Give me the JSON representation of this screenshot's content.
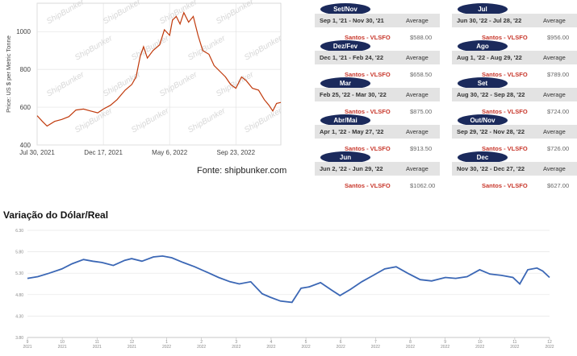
{
  "bunker_chart": {
    "y_axis_label": "Price: US $ per Metric Tonne",
    "watermark": "ShipBunker",
    "source": "Fonte: shipbunker.com"
  },
  "price_cards": [
    {
      "label": "Set/Nov",
      "period": "Sep 1, '21 - Nov 30, '21",
      "avg_label": "Average",
      "port": "Santos - VLSFO",
      "price": "$588.00"
    },
    {
      "label": "Dez/Fev",
      "period": "Dec 1, '21 - Feb 24, '22",
      "avg_label": "Average",
      "port": "Santos - VLSFO",
      "price": "$658.50"
    },
    {
      "label": "Mar",
      "period": "Feb 25, '22 - Mar 30, '22",
      "avg_label": "Average",
      "port": "Santos - VLSFO",
      "price": "$875.00"
    },
    {
      "label": "Abr/Mai",
      "period": "Apr 1, '22 - May 27, '22",
      "avg_label": "Average",
      "port": "Santos - VLSFO",
      "price": "$913.50"
    },
    {
      "label": "Jun",
      "period": "Jun 2, '22 - Jun 29, '22",
      "avg_label": "Average",
      "port": "Santos - VLSFO",
      "price": "$1062.00"
    },
    {
      "label": "Jul",
      "period": "Jun 30, '22 - Jul 28, '22",
      "avg_label": "Average",
      "port": "Santos - VLSFO",
      "price": "$956.00"
    },
    {
      "label": "Ago",
      "period": "Aug 1, '22 - Aug 29, '22",
      "avg_label": "Average",
      "port": "Santos - VLSFO",
      "price": "$789.00"
    },
    {
      "label": "Set",
      "period": "Aug 30, '22 - Sep 28, '22",
      "avg_label": "Average",
      "port": "Santos - VLSFO",
      "price": "$724.00"
    },
    {
      "label": "Out/Nov",
      "period": "Sep 29, '22 - Nov 28, '22",
      "avg_label": "Average",
      "port": "Santos - VLSFO",
      "price": "$726.00"
    },
    {
      "label": "Dec",
      "period": "Nov 30, '22 - Dec 27, '22",
      "avg_label": "Average",
      "port": "Santos - VLSFO",
      "price": "$627.00"
    }
  ],
  "fx_title": "Variação do Dólar/Real",
  "colors": {
    "bunker_line": "#c0390b",
    "fx_line": "#3b67b5",
    "pill": "#1b2a5c",
    "port_text": "#c8372b"
  },
  "chart_data": [
    {
      "type": "line",
      "title": "",
      "ylabel": "Price: US $ per Metric Tonne",
      "xlabel": "",
      "ylim": [
        400,
        1150
      ],
      "y_ticks": [
        400,
        600,
        800,
        1000
      ],
      "x_ticks": [
        "Jul 30, 2021",
        "Dec 17, 2021",
        "May 6, 2022",
        "Sep 23, 2022"
      ],
      "x_range": [
        "2021-07-30",
        "2022-12-27"
      ],
      "grid": true,
      "series": [
        {
          "points": [
            [
              "2021-07-30",
              555
            ],
            [
              "2021-08-10",
              525
            ],
            [
              "2021-08-20",
              500
            ],
            [
              "2021-09-05",
              525
            ],
            [
              "2021-09-20",
              535
            ],
            [
              "2021-10-05",
              550
            ],
            [
              "2021-10-20",
              585
            ],
            [
              "2021-11-05",
              590
            ],
            [
              "2021-11-20",
              580
            ],
            [
              "2021-12-05",
              570
            ],
            [
              "2021-12-17",
              590
            ],
            [
              "2022-01-01",
              610
            ],
            [
              "2022-01-15",
              640
            ],
            [
              "2022-02-01",
              690
            ],
            [
              "2022-02-15",
              720
            ],
            [
              "2022-02-24",
              760
            ],
            [
              "2022-03-05",
              870
            ],
            [
              "2022-03-12",
              920
            ],
            [
              "2022-03-20",
              860
            ],
            [
              "2022-04-01",
              900
            ],
            [
              "2022-04-15",
              930
            ],
            [
              "2022-04-25",
              1010
            ],
            [
              "2022-05-06",
              980
            ],
            [
              "2022-05-12",
              1060
            ],
            [
              "2022-05-20",
              1080
            ],
            [
              "2022-05-28",
              1040
            ],
            [
              "2022-06-05",
              1100
            ],
            [
              "2022-06-15",
              1050
            ],
            [
              "2022-06-25",
              1080
            ],
            [
              "2022-07-05",
              980
            ],
            [
              "2022-07-15",
              900
            ],
            [
              "2022-07-28",
              880
            ],
            [
              "2022-08-08",
              820
            ],
            [
              "2022-08-20",
              790
            ],
            [
              "2022-09-01",
              760
            ],
            [
              "2022-09-12",
              720
            ],
            [
              "2022-09-23",
              700
            ],
            [
              "2022-10-05",
              760
            ],
            [
              "2022-10-15",
              740
            ],
            [
              "2022-10-28",
              700
            ],
            [
              "2022-11-10",
              690
            ],
            [
              "2022-11-22",
              640
            ],
            [
              "2022-12-02",
              610
            ],
            [
              "2022-12-10",
              580
            ],
            [
              "2022-12-18",
              620
            ],
            [
              "2022-12-27",
              625
            ]
          ]
        }
      ]
    },
    {
      "type": "line",
      "title": "Variação do Dólar/Real",
      "xlabel": "",
      "ylabel": "",
      "ylim": [
        3.8,
        6.3
      ],
      "y_ticks": [
        "3.80",
        "4.30",
        "4.80",
        "5.30",
        "5.80",
        "6.30"
      ],
      "x_ticks": [
        [
          "9",
          "2021"
        ],
        [
          "10",
          "2021"
        ],
        [
          "11",
          "2021"
        ],
        [
          "12",
          "2021"
        ],
        [
          "1",
          "2022"
        ],
        [
          "2",
          "2022"
        ],
        [
          "3",
          "2022"
        ],
        [
          "4",
          "2022"
        ],
        [
          "5",
          "2022"
        ],
        [
          "6",
          "2022"
        ],
        [
          "7",
          "2022"
        ],
        [
          "8",
          "2022"
        ],
        [
          "9",
          "2022"
        ],
        [
          "10",
          "2022"
        ],
        [
          "11",
          "2022"
        ],
        [
          "12",
          "2022"
        ]
      ],
      "x_range": [
        "2021-09-01",
        "2022-12-01"
      ],
      "grid": true,
      "series": [
        {
          "points": [
            [
              "2021-09-01",
              5.18
            ],
            [
              "2021-09-10",
              5.22
            ],
            [
              "2021-09-20",
              5.3
            ],
            [
              "2021-10-01",
              5.4
            ],
            [
              "2021-10-10",
              5.52
            ],
            [
              "2021-10-20",
              5.62
            ],
            [
              "2021-10-28",
              5.58
            ],
            [
              "2021-11-05",
              5.55
            ],
            [
              "2021-11-15",
              5.48
            ],
            [
              "2021-11-25",
              5.6
            ],
            [
              "2021-12-01",
              5.64
            ],
            [
              "2021-12-10",
              5.58
            ],
            [
              "2021-12-20",
              5.68
            ],
            [
              "2021-12-28",
              5.7
            ],
            [
              "2022-01-05",
              5.66
            ],
            [
              "2022-01-15",
              5.55
            ],
            [
              "2022-01-25",
              5.45
            ],
            [
              "2022-02-05",
              5.32
            ],
            [
              "2022-02-15",
              5.2
            ],
            [
              "2022-02-25",
              5.1
            ],
            [
              "2022-03-05",
              5.05
            ],
            [
              "2022-03-15",
              5.1
            ],
            [
              "2022-03-25",
              4.82
            ],
            [
              "2022-04-01",
              4.74
            ],
            [
              "2022-04-10",
              4.65
            ],
            [
              "2022-04-20",
              4.62
            ],
            [
              "2022-04-28",
              4.95
            ],
            [
              "2022-05-05",
              4.98
            ],
            [
              "2022-05-15",
              5.08
            ],
            [
              "2022-05-25",
              4.9
            ],
            [
              "2022-06-01",
              4.78
            ],
            [
              "2022-06-10",
              4.92
            ],
            [
              "2022-06-20",
              5.1
            ],
            [
              "2022-06-30",
              5.25
            ],
            [
              "2022-07-10",
              5.4
            ],
            [
              "2022-07-20",
              5.45
            ],
            [
              "2022-07-30",
              5.3
            ],
            [
              "2022-08-10",
              5.15
            ],
            [
              "2022-08-20",
              5.12
            ],
            [
              "2022-09-01",
              5.2
            ],
            [
              "2022-09-10",
              5.18
            ],
            [
              "2022-09-20",
              5.22
            ],
            [
              "2022-10-01",
              5.38
            ],
            [
              "2022-10-10",
              5.28
            ],
            [
              "2022-10-20",
              5.25
            ],
            [
              "2022-10-30",
              5.2
            ],
            [
              "2022-11-05",
              5.05
            ],
            [
              "2022-11-12",
              5.38
            ],
            [
              "2022-11-20",
              5.42
            ],
            [
              "2022-11-25",
              5.35
            ],
            [
              "2022-12-01",
              5.2
            ]
          ]
        }
      ]
    }
  ]
}
